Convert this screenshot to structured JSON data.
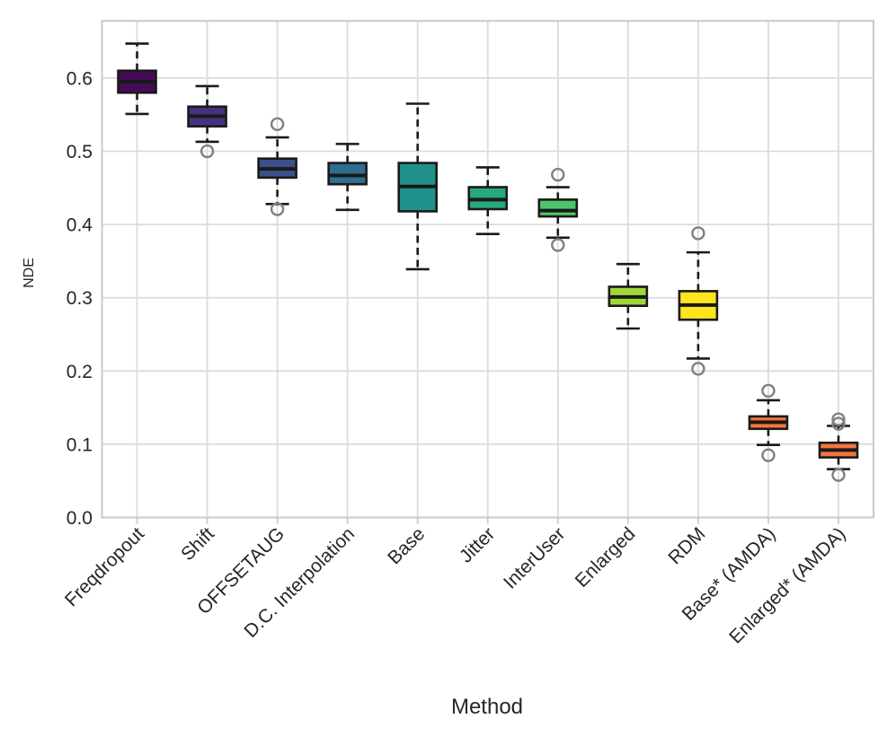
{
  "figure": {
    "background": "#ffffff",
    "kind": "seaborn-style box plot"
  },
  "chart_data": {
    "type": "boxplot",
    "title": "",
    "xlabel": "Method",
    "ylabel": "NDE",
    "ylim": [
      0,
      0.678
    ],
    "yticks": [
      0.0,
      0.1,
      0.2,
      0.3,
      0.4,
      0.5,
      0.6
    ],
    "grid": true,
    "legend": "none",
    "categories": [
      "Freqdropout",
      "Shift",
      "OFFSETAUG",
      "D.C. Interpolation",
      "Base",
      "Jitter",
      "InterUser",
      "Enlarged",
      "RDM",
      "Base* (AMDA)",
      "Enlarged* (AMDA)"
    ],
    "boxes": [
      {
        "label": "Freqdropout",
        "color": "#440c56",
        "whislo": 0.551,
        "q1": 0.58,
        "med": 0.595,
        "q3": 0.61,
        "whishi": 0.647,
        "outliers": []
      },
      {
        "label": "Shift",
        "color": "#46327e",
        "whislo": 0.513,
        "q1": 0.534,
        "med": 0.548,
        "q3": 0.561,
        "whishi": 0.589,
        "outliers": [
          0.5
        ]
      },
      {
        "label": "OFFSETAUG",
        "color": "#3b518b",
        "whislo": 0.428,
        "q1": 0.464,
        "med": 0.476,
        "q3": 0.49,
        "whishi": 0.519,
        "outliers": [
          0.537,
          0.421
        ]
      },
      {
        "label": "D.C. Interpolation",
        "color": "#2e6e8e",
        "whislo": 0.42,
        "q1": 0.455,
        "med": 0.467,
        "q3": 0.484,
        "whishi": 0.51,
        "outliers": []
      },
      {
        "label": "Base",
        "color": "#21918c",
        "whislo": 0.339,
        "q1": 0.418,
        "med": 0.452,
        "q3": 0.484,
        "whishi": 0.565,
        "outliers": []
      },
      {
        "label": "Jitter",
        "color": "#28a87d",
        "whislo": 0.387,
        "q1": 0.421,
        "med": 0.434,
        "q3": 0.451,
        "whishi": 0.478,
        "outliers": []
      },
      {
        "label": "InterUser",
        "color": "#4ec46a",
        "whislo": 0.382,
        "q1": 0.411,
        "med": 0.419,
        "q3": 0.434,
        "whishi": 0.451,
        "outliers": [
          0.468,
          0.372
        ]
      },
      {
        "label": "Enlarged",
        "color": "#9fd738",
        "whislo": 0.258,
        "q1": 0.289,
        "med": 0.301,
        "q3": 0.315,
        "whishi": 0.346,
        "outliers": []
      },
      {
        "label": "RDM",
        "color": "#fce51f",
        "whislo": 0.217,
        "q1": 0.27,
        "med": 0.29,
        "q3": 0.309,
        "whishi": 0.362,
        "outliers": [
          0.388,
          0.203
        ]
      },
      {
        "label": "Base* (AMDA)",
        "color": "#f4743b",
        "whislo": 0.099,
        "q1": 0.121,
        "med": 0.13,
        "q3": 0.138,
        "whishi": 0.16,
        "outliers": [
          0.173,
          0.085
        ]
      },
      {
        "label": "Enlarged* (AMDA)",
        "color": "#f4743b",
        "whislo": 0.066,
        "q1": 0.082,
        "med": 0.092,
        "q3": 0.102,
        "whishi": 0.125,
        "outliers": [
          0.134,
          0.128,
          0.058
        ]
      }
    ],
    "style": {
      "box_edge_color": "#1a1a1a",
      "median_color": "#1a1a1a",
      "whisker_color": "#1a1a1a",
      "outlier_color": "#808080",
      "grid_color": "#dcdcdc",
      "frame_color": "#c9c9c9",
      "tick_stub_color": "#cfcfcf",
      "text_color": "#262626"
    }
  }
}
